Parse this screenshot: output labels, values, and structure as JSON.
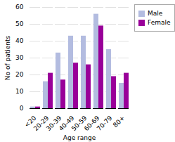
{
  "chart_data": {
    "type": "bar",
    "categories": [
      "<20",
      "20-29",
      "30-39",
      "40-49",
      "50-59",
      "60-69",
      "70-79",
      "80+"
    ],
    "series": [
      {
        "name": "Male",
        "color": "#b3bce0",
        "values": [
          1,
          16,
          33,
          43,
          43,
          56,
          35,
          15
        ]
      },
      {
        "name": "Female",
        "color": "#990099",
        "values": [
          1,
          21,
          17,
          27,
          26,
          49,
          19,
          21
        ]
      }
    ],
    "xlabel": "Age range",
    "ylabel": "No of patients",
    "ylim": [
      0,
      60
    ],
    "yticks": [
      0,
      10,
      20,
      30,
      40,
      50,
      60
    ],
    "grid": true,
    "legend": "right"
  }
}
